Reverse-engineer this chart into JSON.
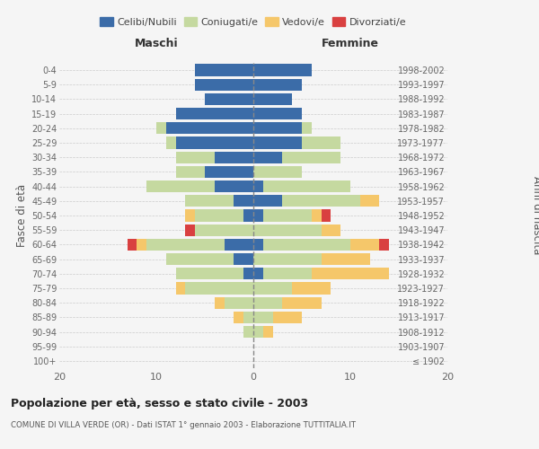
{
  "age_groups": [
    "100+",
    "95-99",
    "90-94",
    "85-89",
    "80-84",
    "75-79",
    "70-74",
    "65-69",
    "60-64",
    "55-59",
    "50-54",
    "45-49",
    "40-44",
    "35-39",
    "30-34",
    "25-29",
    "20-24",
    "15-19",
    "10-14",
    "5-9",
    "0-4"
  ],
  "birth_years": [
    "≤ 1902",
    "1903-1907",
    "1908-1912",
    "1913-1917",
    "1918-1922",
    "1923-1927",
    "1928-1932",
    "1933-1937",
    "1938-1942",
    "1943-1947",
    "1948-1952",
    "1953-1957",
    "1958-1962",
    "1963-1967",
    "1968-1972",
    "1973-1977",
    "1978-1982",
    "1983-1987",
    "1988-1992",
    "1993-1997",
    "1998-2002"
  ],
  "males": {
    "celibi": [
      0,
      0,
      0,
      0,
      0,
      0,
      1,
      2,
      3,
      0,
      1,
      2,
      4,
      5,
      4,
      8,
      9,
      8,
      5,
      6,
      6
    ],
    "coniugati": [
      0,
      0,
      1,
      1,
      3,
      7,
      7,
      7,
      8,
      6,
      5,
      5,
      7,
      3,
      4,
      1,
      1,
      0,
      0,
      0,
      0
    ],
    "vedovi": [
      0,
      0,
      0,
      1,
      1,
      1,
      0,
      0,
      1,
      0,
      1,
      0,
      0,
      0,
      0,
      0,
      0,
      0,
      0,
      0,
      0
    ],
    "divorziati": [
      0,
      0,
      0,
      0,
      0,
      0,
      0,
      0,
      1,
      1,
      0,
      0,
      0,
      0,
      0,
      0,
      0,
      0,
      0,
      0,
      0
    ]
  },
  "females": {
    "nubili": [
      0,
      0,
      0,
      0,
      0,
      0,
      1,
      0,
      1,
      0,
      1,
      3,
      1,
      0,
      3,
      5,
      5,
      5,
      4,
      5,
      6
    ],
    "coniugate": [
      0,
      0,
      1,
      2,
      3,
      4,
      5,
      7,
      9,
      7,
      5,
      8,
      9,
      5,
      6,
      4,
      1,
      0,
      0,
      0,
      0
    ],
    "vedove": [
      0,
      0,
      1,
      3,
      4,
      4,
      8,
      5,
      3,
      2,
      1,
      2,
      0,
      0,
      0,
      0,
      0,
      0,
      0,
      0,
      0
    ],
    "divorziate": [
      0,
      0,
      0,
      0,
      0,
      0,
      0,
      0,
      1,
      0,
      1,
      0,
      0,
      0,
      0,
      0,
      0,
      0,
      0,
      0,
      0
    ]
  },
  "colors": {
    "celibi_nubili": "#3b6ca8",
    "coniugati": "#c5d9a0",
    "vedovi": "#f5c76a",
    "divorziati": "#d94040"
  },
  "xlim": [
    -20,
    20
  ],
  "xticks": [
    -20,
    -10,
    0,
    10,
    20
  ],
  "xticklabels": [
    "20",
    "10",
    "0",
    "10",
    "20"
  ],
  "title": "Popolazione per età, sesso e stato civile - 2003",
  "subtitle": "COMUNE DI VILLA VERDE (OR) - Dati ISTAT 1° gennaio 2003 - Elaborazione TUTTITALIA.IT",
  "ylabel_left": "Fasce di età",
  "ylabel_right": "Anni di nascita",
  "label_maschi": "Maschi",
  "label_femmine": "Femmine",
  "legend_labels": [
    "Celibi/Nubili",
    "Coniugati/e",
    "Vedovi/e",
    "Divorziati/e"
  ],
  "background_color": "#f5f5f5"
}
